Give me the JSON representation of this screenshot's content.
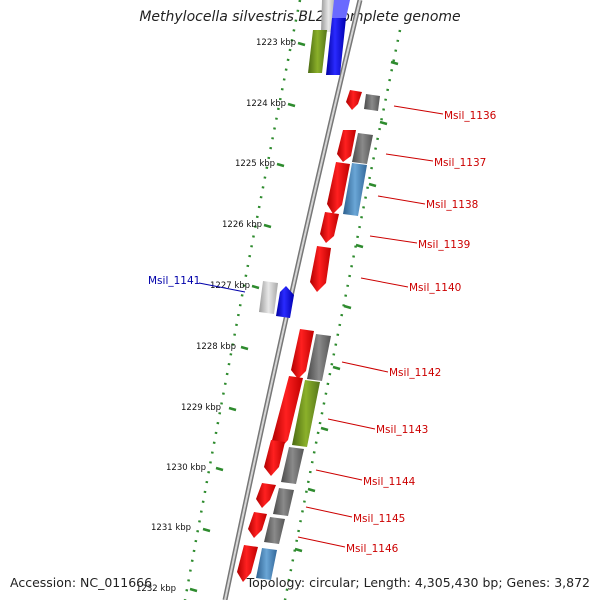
{
  "title": "Methylocella silvestris BL2, complete genome",
  "footer": {
    "accession": "Accession: NC_011666",
    "summary": "Topology: circular; Length: 4,305,430 bp; Genes: 3,872"
  },
  "colors": {
    "backbone": "#8c8c8c",
    "tick_dots": "#2e8b2e",
    "forward_gene": "#ff0000",
    "reverse_gene": "#0000ff",
    "grey_feature": "#6e6e6e",
    "olive_feature": "#6b8e23",
    "steelblue_feature": "#4682b4",
    "label_forward": "#cc0000",
    "label_reverse": "#0000aa"
  },
  "kbp_ticks": [
    "1223 kbp",
    "1224 kbp",
    "1225 kbp",
    "1226 kbp",
    "1227 kbp",
    "1228 kbp",
    "1229 kbp",
    "1230 kbp",
    "1231 kbp",
    "1232 kbp"
  ],
  "gene_labels": [
    {
      "name": "Msil_1136",
      "strand": "forward"
    },
    {
      "name": "Msil_1137",
      "strand": "forward"
    },
    {
      "name": "Msil_1138",
      "strand": "forward"
    },
    {
      "name": "Msil_1139",
      "strand": "forward"
    },
    {
      "name": "Msil_1140",
      "strand": "forward"
    },
    {
      "name": "Msil_1141",
      "strand": "reverse"
    },
    {
      "name": "Msil_1142",
      "strand": "forward"
    },
    {
      "name": "Msil_1143",
      "strand": "forward"
    },
    {
      "name": "Msil_1144",
      "strand": "forward"
    },
    {
      "name": "Msil_1145",
      "strand": "forward"
    },
    {
      "name": "Msil_1146",
      "strand": "forward"
    }
  ]
}
